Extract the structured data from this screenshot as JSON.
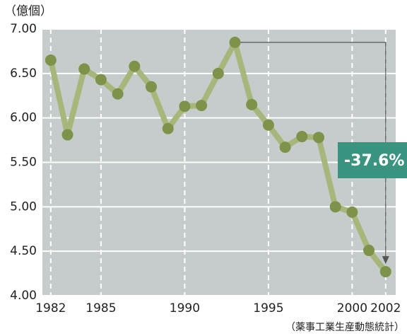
{
  "chart_data": {
    "type": "line",
    "y_label": "（億個）",
    "source": "（薬事工業生産動態統計）",
    "annotation": "-37.6%",
    "x": [
      1982,
      1983,
      1984,
      1985,
      1986,
      1987,
      1988,
      1989,
      1990,
      1991,
      1992,
      1993,
      1994,
      1995,
      1996,
      1997,
      1998,
      1999,
      2000,
      2001,
      2002
    ],
    "series": [
      {
        "color": "#a7b77b",
        "marker_color": "#7e9249",
        "values": [
          6.65,
          5.81,
          6.55,
          6.43,
          6.27,
          6.58,
          6.35,
          5.88,
          6.13,
          6.14,
          6.5,
          6.85,
          6.15,
          5.92,
          5.67,
          5.79,
          5.78,
          5.0,
          4.94,
          4.51,
          4.27
        ]
      }
    ],
    "xlim": [
      1981.5,
      2002.6
    ],
    "xticks": [
      1982,
      1985,
      1990,
      1995,
      2000,
      2002
    ],
    "ylim": [
      4,
      7
    ],
    "yticks": [
      {
        "value": 4,
        "label": "4.00"
      },
      {
        "value": 4.5,
        "label": "4.50"
      },
      {
        "value": 5,
        "label": "5.00"
      },
      {
        "value": 5.5,
        "label": "5.50"
      },
      {
        "value": 6,
        "label": "6.00"
      },
      {
        "value": 6.5,
        "label": "6.50"
      },
      {
        "value": 7,
        "label": "7.00"
      }
    ],
    "grid": true
  }
}
